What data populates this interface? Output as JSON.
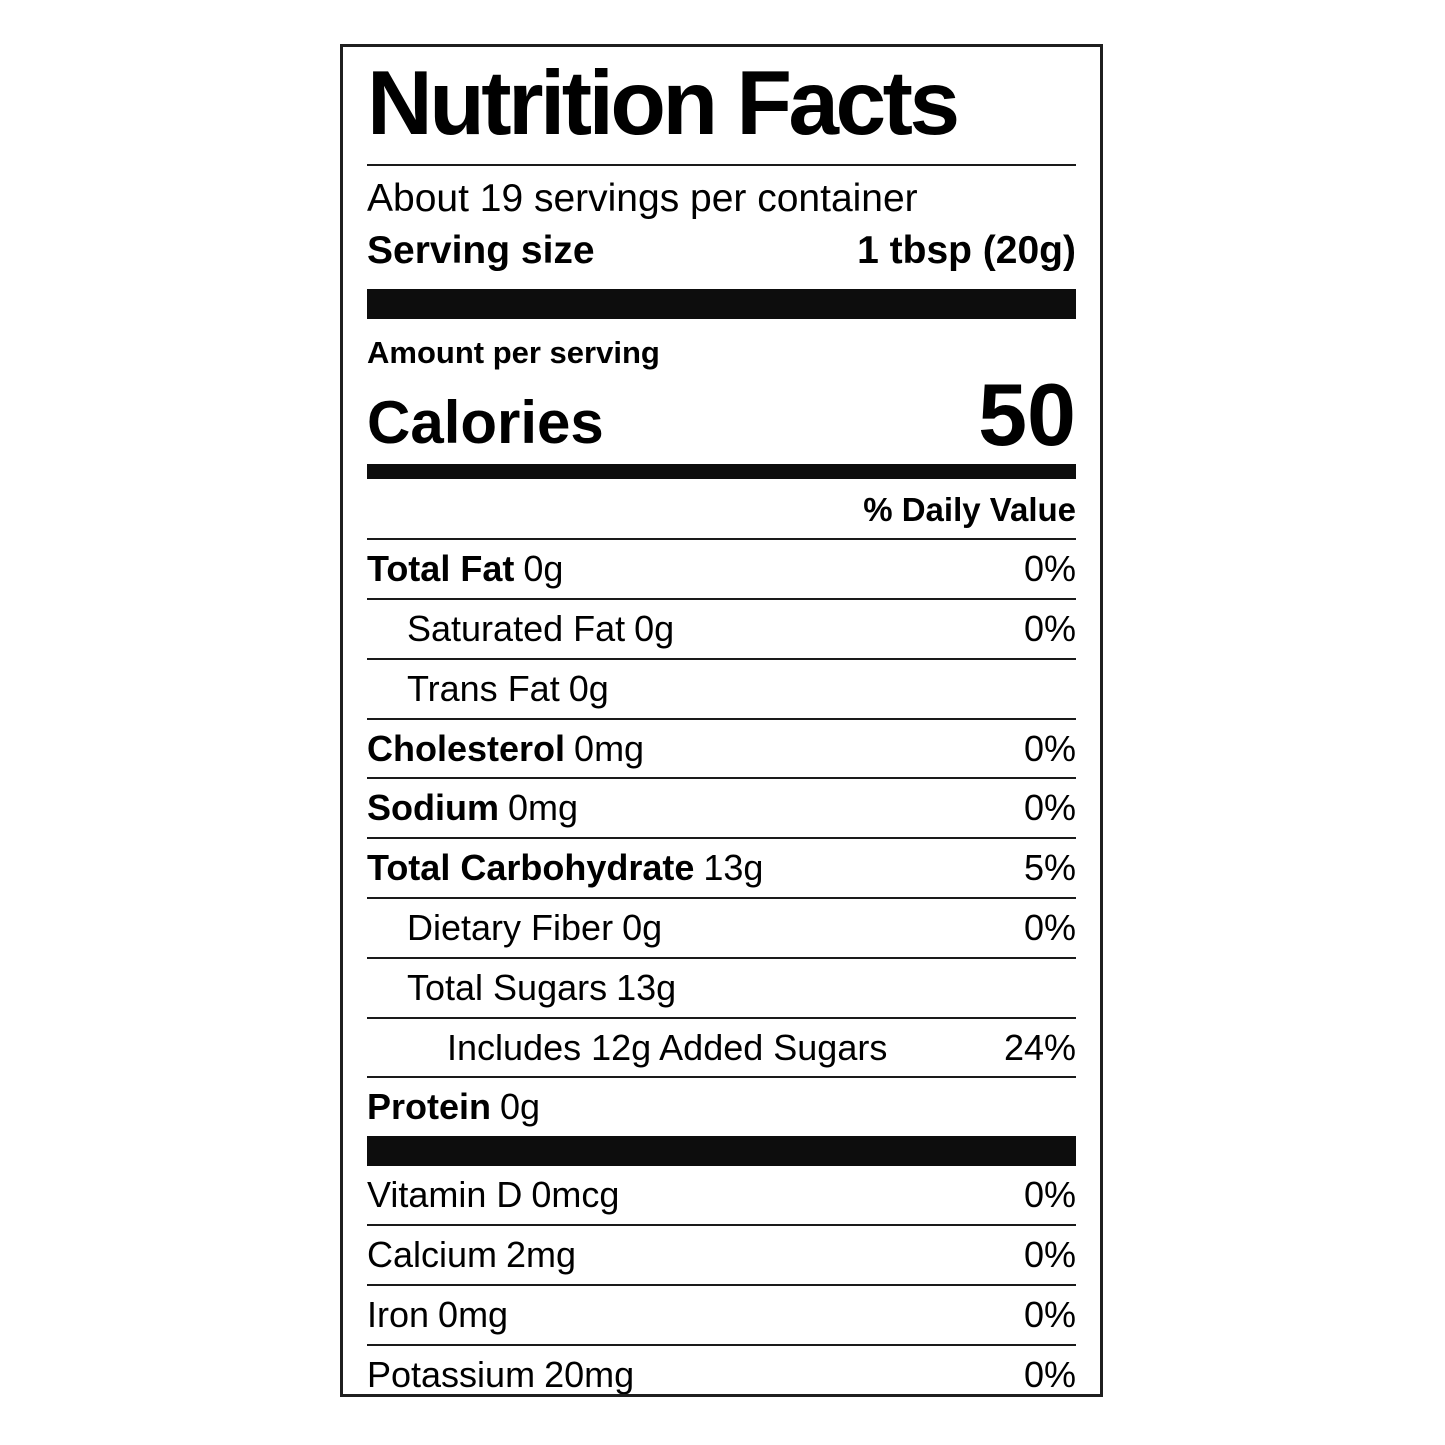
{
  "label": {
    "title": "Nutrition Facts",
    "servings_per_container": "About 19 servings per container",
    "serving_size_label": "Serving size",
    "serving_size_value": "1 tbsp (20g)",
    "amount_per_serving": "Amount per serving",
    "calories_label": "Calories",
    "calories_value": "50",
    "daily_value_header": "% Daily Value",
    "nutrients": [
      {
        "name": "Total Fat",
        "amount": "0g",
        "dv": "0%"
      },
      {
        "name": "Saturated Fat",
        "amount": "0g",
        "dv": "0%"
      },
      {
        "name": "Trans Fat",
        "amount": "0g",
        "dv": ""
      },
      {
        "name": "Cholesterol",
        "amount": "0mg",
        "dv": "0%"
      },
      {
        "name": "Sodium",
        "amount": "0mg",
        "dv": "0%"
      },
      {
        "name": "Total Carbohydrate",
        "amount": "13g",
        "dv": "5%"
      },
      {
        "name": "Dietary Fiber",
        "amount": "0g",
        "dv": "0%"
      },
      {
        "name": "Total Sugars",
        "amount": "13g",
        "dv": ""
      },
      {
        "name": "Includes 12g Added Sugars",
        "amount": "",
        "dv": "24%"
      },
      {
        "name": "Protein",
        "amount": "0g",
        "dv": ""
      }
    ],
    "micronutrients": [
      {
        "name": "Vitamin D",
        "amount": "0mcg",
        "dv": "0%"
      },
      {
        "name": "Calcium",
        "amount": "2mg",
        "dv": "0%"
      },
      {
        "name": "Iron",
        "amount": "0mg",
        "dv": "0%"
      },
      {
        "name": "Potassium",
        "amount": "20mg",
        "dv": "0%"
      }
    ],
    "colors": {
      "text": "#000000",
      "bar": "#0d0d0d",
      "border": "#1f1f1f",
      "background": "#ffffff"
    }
  }
}
